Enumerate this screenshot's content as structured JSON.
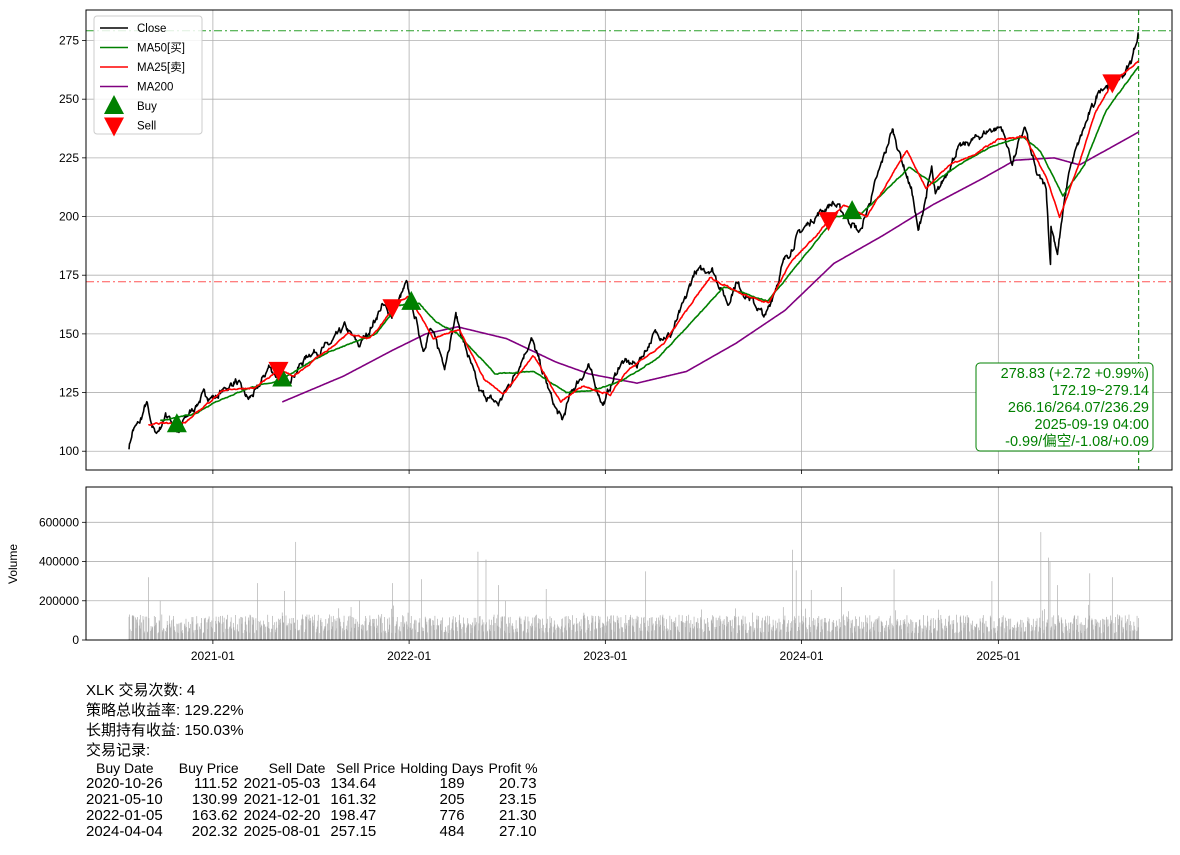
{
  "chart_data": {
    "ticker": "XLK",
    "price_panel": {
      "type": "line",
      "x_range": [
        "2020-05-10",
        "2025-11-20"
      ],
      "ylim": [
        92,
        288
      ],
      "yticks": [
        100,
        125,
        150,
        175,
        200,
        225,
        250,
        275
      ],
      "grid": true,
      "legend_position": "top-left",
      "legend": [
        "Close",
        "MA50[买]",
        "MA25[卖]",
        "MA200",
        "Buy",
        "Sell"
      ],
      "colors": {
        "close": "#000000",
        "ma50": "#008000",
        "ma25": "#ff0000",
        "ma200": "#800080",
        "buy": "#008000",
        "sell": "#ff0000",
        "volume": "#b0b0b0"
      },
      "close_anchors": [
        [
          "2020-07-29",
          102
        ],
        [
          "2020-08-05",
          109
        ],
        [
          "2020-08-18",
          112
        ],
        [
          "2020-08-31",
          121
        ],
        [
          "2020-09-08",
          110
        ],
        [
          "2020-09-23",
          108
        ],
        [
          "2020-10-05",
          116
        ],
        [
          "2020-10-20",
          112
        ],
        [
          "2020-10-30",
          107
        ],
        [
          "2020-11-10",
          114
        ],
        [
          "2020-11-25",
          118
        ],
        [
          "2020-12-15",
          124
        ],
        [
          "2021-01-05",
          123
        ],
        [
          "2021-02-12",
          130
        ],
        [
          "2021-03-08",
          122
        ],
        [
          "2021-03-25",
          126
        ],
        [
          "2021-04-15",
          136
        ],
        [
          "2021-05-12",
          129
        ],
        [
          "2021-06-01",
          133
        ],
        [
          "2021-06-30",
          142
        ],
        [
          "2021-07-20",
          143
        ],
        [
          "2021-08-10",
          146
        ],
        [
          "2021-09-03",
          153
        ],
        [
          "2021-09-30",
          145
        ],
        [
          "2021-10-20",
          152
        ],
        [
          "2021-11-12",
          162
        ],
        [
          "2021-11-30",
          158
        ],
        [
          "2021-12-27",
          171
        ],
        [
          "2022-01-20",
          150
        ],
        [
          "2022-01-27",
          144
        ],
        [
          "2022-02-10",
          152
        ],
        [
          "2022-03-08",
          137
        ],
        [
          "2022-03-29",
          158
        ],
        [
          "2022-04-12",
          147
        ],
        [
          "2022-05-12",
          125
        ],
        [
          "2022-06-16",
          120
        ],
        [
          "2022-07-15",
          132
        ],
        [
          "2022-08-16",
          148
        ],
        [
          "2022-09-30",
          118
        ],
        [
          "2022-10-13",
          113
        ],
        [
          "2022-10-31",
          126
        ],
        [
          "2022-11-30",
          136
        ],
        [
          "2022-12-28",
          120
        ],
        [
          "2023-01-30",
          138
        ],
        [
          "2023-03-01",
          137
        ],
        [
          "2023-04-03",
          150
        ],
        [
          "2023-05-02",
          149
        ],
        [
          "2023-05-31",
          165
        ],
        [
          "2023-06-15",
          176
        ],
        [
          "2023-07-18",
          178
        ],
        [
          "2023-08-17",
          163
        ],
        [
          "2023-09-01",
          172
        ],
        [
          "2023-10-26",
          157
        ],
        [
          "2023-11-28",
          180
        ],
        [
          "2023-12-28",
          193
        ],
        [
          "2024-01-31",
          201
        ],
        [
          "2024-02-28",
          206
        ],
        [
          "2024-03-12",
          203
        ],
        [
          "2024-04-19",
          193
        ],
        [
          "2024-05-16",
          213
        ],
        [
          "2024-06-18",
          237
        ],
        [
          "2024-07-25",
          210
        ],
        [
          "2024-08-05",
          193
        ],
        [
          "2024-08-30",
          220
        ],
        [
          "2024-09-06",
          208
        ],
        [
          "2024-10-15",
          228
        ],
        [
          "2024-11-11",
          232
        ],
        [
          "2024-12-16",
          237
        ],
        [
          "2025-01-07",
          238
        ],
        [
          "2025-01-27",
          223
        ],
        [
          "2025-02-19",
          238
        ],
        [
          "2025-03-13",
          218
        ],
        [
          "2025-03-31",
          212
        ],
        [
          "2025-04-08",
          180
        ],
        [
          "2025-04-09",
          196
        ],
        [
          "2025-04-21",
          185
        ],
        [
          "2025-05-13",
          220
        ],
        [
          "2025-06-10",
          238
        ],
        [
          "2025-07-10",
          255
        ],
        [
          "2025-08-01",
          257
        ],
        [
          "2025-08-20",
          260
        ],
        [
          "2025-09-05",
          266
        ],
        [
          "2025-09-19",
          279
        ]
      ],
      "ma50_anchors": [
        [
          "2020-09-25",
          113
        ],
        [
          "2020-12-01",
          116
        ],
        [
          "2021-01-05",
          121
        ],
        [
          "2021-03-10",
          127
        ],
        [
          "2021-05-03",
          130
        ],
        [
          "2021-08-01",
          142
        ],
        [
          "2021-11-01",
          150
        ],
        [
          "2021-12-10",
          162
        ],
        [
          "2022-01-20",
          163
        ],
        [
          "2022-02-20",
          155
        ],
        [
          "2022-04-01",
          150
        ],
        [
          "2022-06-10",
          133
        ],
        [
          "2022-08-20",
          134
        ],
        [
          "2022-10-20",
          125
        ],
        [
          "2022-12-10",
          126
        ],
        [
          "2023-02-01",
          130
        ],
        [
          "2023-04-10",
          140
        ],
        [
          "2023-06-10",
          155
        ],
        [
          "2023-08-10",
          170
        ],
        [
          "2023-10-30",
          164
        ],
        [
          "2023-12-01",
          173
        ],
        [
          "2024-01-30",
          190
        ],
        [
          "2024-03-05",
          200
        ],
        [
          "2024-04-20",
          201
        ],
        [
          "2024-06-01",
          210
        ],
        [
          "2024-07-20",
          221
        ],
        [
          "2024-09-01",
          214
        ],
        [
          "2024-10-20",
          222
        ],
        [
          "2024-12-20",
          230
        ],
        [
          "2025-02-15",
          234
        ],
        [
          "2025-03-20",
          228
        ],
        [
          "2025-05-01",
          209
        ],
        [
          "2025-06-10",
          222
        ],
        [
          "2025-07-20",
          245
        ],
        [
          "2025-09-19",
          264
        ]
      ],
      "ma25_anchors": [
        [
          "2020-09-03",
          111
        ],
        [
          "2020-10-01",
          112
        ],
        [
          "2020-11-10",
          112
        ],
        [
          "2020-12-10",
          118
        ],
        [
          "2021-01-20",
          126
        ],
        [
          "2021-03-20",
          127
        ],
        [
          "2021-05-05",
          135
        ],
        [
          "2021-06-01",
          132
        ],
        [
          "2021-07-15",
          140
        ],
        [
          "2021-09-10",
          150
        ],
        [
          "2021-10-20",
          148
        ],
        [
          "2021-12-10",
          163
        ],
        [
          "2022-01-01",
          166
        ],
        [
          "2022-02-15",
          148
        ],
        [
          "2022-04-05",
          152
        ],
        [
          "2022-05-20",
          131
        ],
        [
          "2022-06-25",
          124
        ],
        [
          "2022-08-20",
          141
        ],
        [
          "2022-10-10",
          121
        ],
        [
          "2022-11-20",
          128
        ],
        [
          "2023-01-10",
          124
        ],
        [
          "2023-02-10",
          134
        ],
        [
          "2023-04-20",
          146
        ],
        [
          "2023-06-10",
          163
        ],
        [
          "2023-07-15",
          174
        ],
        [
          "2023-09-10",
          167
        ],
        [
          "2023-11-01",
          163
        ],
        [
          "2023-12-10",
          180
        ],
        [
          "2024-01-20",
          190
        ],
        [
          "2024-02-20",
          198
        ],
        [
          "2024-03-20",
          205
        ],
        [
          "2024-05-01",
          200
        ],
        [
          "2024-06-10",
          215
        ],
        [
          "2024-07-15",
          228
        ],
        [
          "2024-08-20",
          212
        ],
        [
          "2024-10-01",
          222
        ],
        [
          "2024-11-15",
          226
        ],
        [
          "2025-01-01",
          233
        ],
        [
          "2025-02-20",
          234
        ],
        [
          "2025-04-01",
          216
        ],
        [
          "2025-04-25",
          200
        ],
        [
          "2025-05-30",
          222
        ],
        [
          "2025-06-30",
          244
        ],
        [
          "2025-08-01",
          257
        ],
        [
          "2025-09-19",
          266
        ]
      ],
      "ma200_anchors": [
        [
          "2021-05-10",
          121
        ],
        [
          "2021-09-01",
          132
        ],
        [
          "2021-12-01",
          143
        ],
        [
          "2022-02-01",
          150
        ],
        [
          "2022-04-01",
          153
        ],
        [
          "2022-07-01",
          148
        ],
        [
          "2022-10-01",
          138
        ],
        [
          "2022-12-01",
          133
        ],
        [
          "2023-03-01",
          129
        ],
        [
          "2023-06-01",
          134
        ],
        [
          "2023-09-01",
          146
        ],
        [
          "2023-12-01",
          160
        ],
        [
          "2024-03-01",
          180
        ],
        [
          "2024-06-01",
          192
        ],
        [
          "2024-09-01",
          205
        ],
        [
          "2024-12-01",
          216
        ],
        [
          "2025-02-01",
          224
        ],
        [
          "2025-04-15",
          225
        ],
        [
          "2025-06-01",
          222
        ],
        [
          "2025-09-19",
          236
        ]
      ],
      "buy_signals": [
        [
          "2020-10-26",
          111.52
        ],
        [
          "2021-05-10",
          130.99
        ],
        [
          "2022-01-05",
          163.62
        ],
        [
          "2024-04-04",
          202.32
        ]
      ],
      "sell_signals": [
        [
          "2021-05-03",
          134.64
        ],
        [
          "2021-12-01",
          161.32
        ],
        [
          "2024-02-20",
          198.47
        ],
        [
          "2025-08-01",
          257.15
        ]
      ],
      "hlines": [
        {
          "y": 279.14,
          "color": "#2ca02c"
        },
        {
          "y": 172.19,
          "color": "#ff5555"
        }
      ],
      "vline_date": "2025-09-19",
      "info_box": [
        "278.83 (+2.72 +0.99%)",
        "172.19~279.14",
        "266.16/264.07/236.29",
        "2025-09-19 04:00",
        "-0.99/偏空/-1.08/+0.09"
      ]
    },
    "volume_panel": {
      "type": "bar",
      "ylabel": "Volume",
      "ylim": [
        0,
        780000
      ],
      "yticks": [
        0,
        200000,
        400000,
        600000
      ],
      "baseline": 100000,
      "spikes": [
        [
          "2020-09-03",
          200000
        ],
        [
          "2021-03-25",
          290000
        ],
        [
          "2021-06-04",
          500000
        ],
        [
          "2021-05-14",
          250000
        ],
        [
          "2021-12-01",
          290000
        ],
        [
          "2022-01-24",
          310000
        ],
        [
          "2022-05-09",
          450000
        ],
        [
          "2022-05-24",
          410000
        ],
        [
          "2022-09-13",
          260000
        ],
        [
          "2022-06-16",
          280000
        ],
        [
          "2023-03-17",
          350000
        ],
        [
          "2023-12-15",
          460000
        ],
        [
          "2023-12-22",
          355000
        ],
        [
          "2024-01-19",
          255000
        ],
        [
          "2024-03-15",
          270000
        ],
        [
          "2024-06-21",
          360000
        ],
        [
          "2024-12-20",
          300000
        ],
        [
          "2025-03-21",
          550000
        ],
        [
          "2025-04-04",
          420000
        ],
        [
          "2025-04-07",
          400000
        ],
        [
          "2025-06-20",
          340000
        ],
        [
          "2025-08-01",
          320000
        ],
        [
          "2025-04-21",
          280000
        ]
      ]
    },
    "x_tick_labels": [
      "2021-01",
      "2022-01",
      "2023-01",
      "2024-01",
      "2025-01"
    ]
  },
  "stats": {
    "trade_count": "XLK 交易次数: 4",
    "strategy_return": "策略总收益率: 129.22%",
    "buy_hold_return": "长期持有收益: 150.03%",
    "records_title": "交易记录:"
  },
  "trades": {
    "headers": [
      "Buy Date",
      "Buy Price",
      "Sell Date",
      "Sell Price",
      "Holding Days",
      "Profit %"
    ],
    "rows": [
      [
        "2020-10-26",
        "111.52",
        "2021-05-03",
        "134.64",
        "189",
        "20.73"
      ],
      [
        "2021-05-10",
        "130.99",
        "2021-12-01",
        "161.32",
        "205",
        "23.15"
      ],
      [
        "2022-01-05",
        "163.62",
        "2024-02-20",
        "198.47",
        "776",
        "21.30"
      ],
      [
        "2024-04-04",
        "202.32",
        "2025-08-01",
        "257.15",
        "484",
        "27.10"
      ]
    ]
  }
}
